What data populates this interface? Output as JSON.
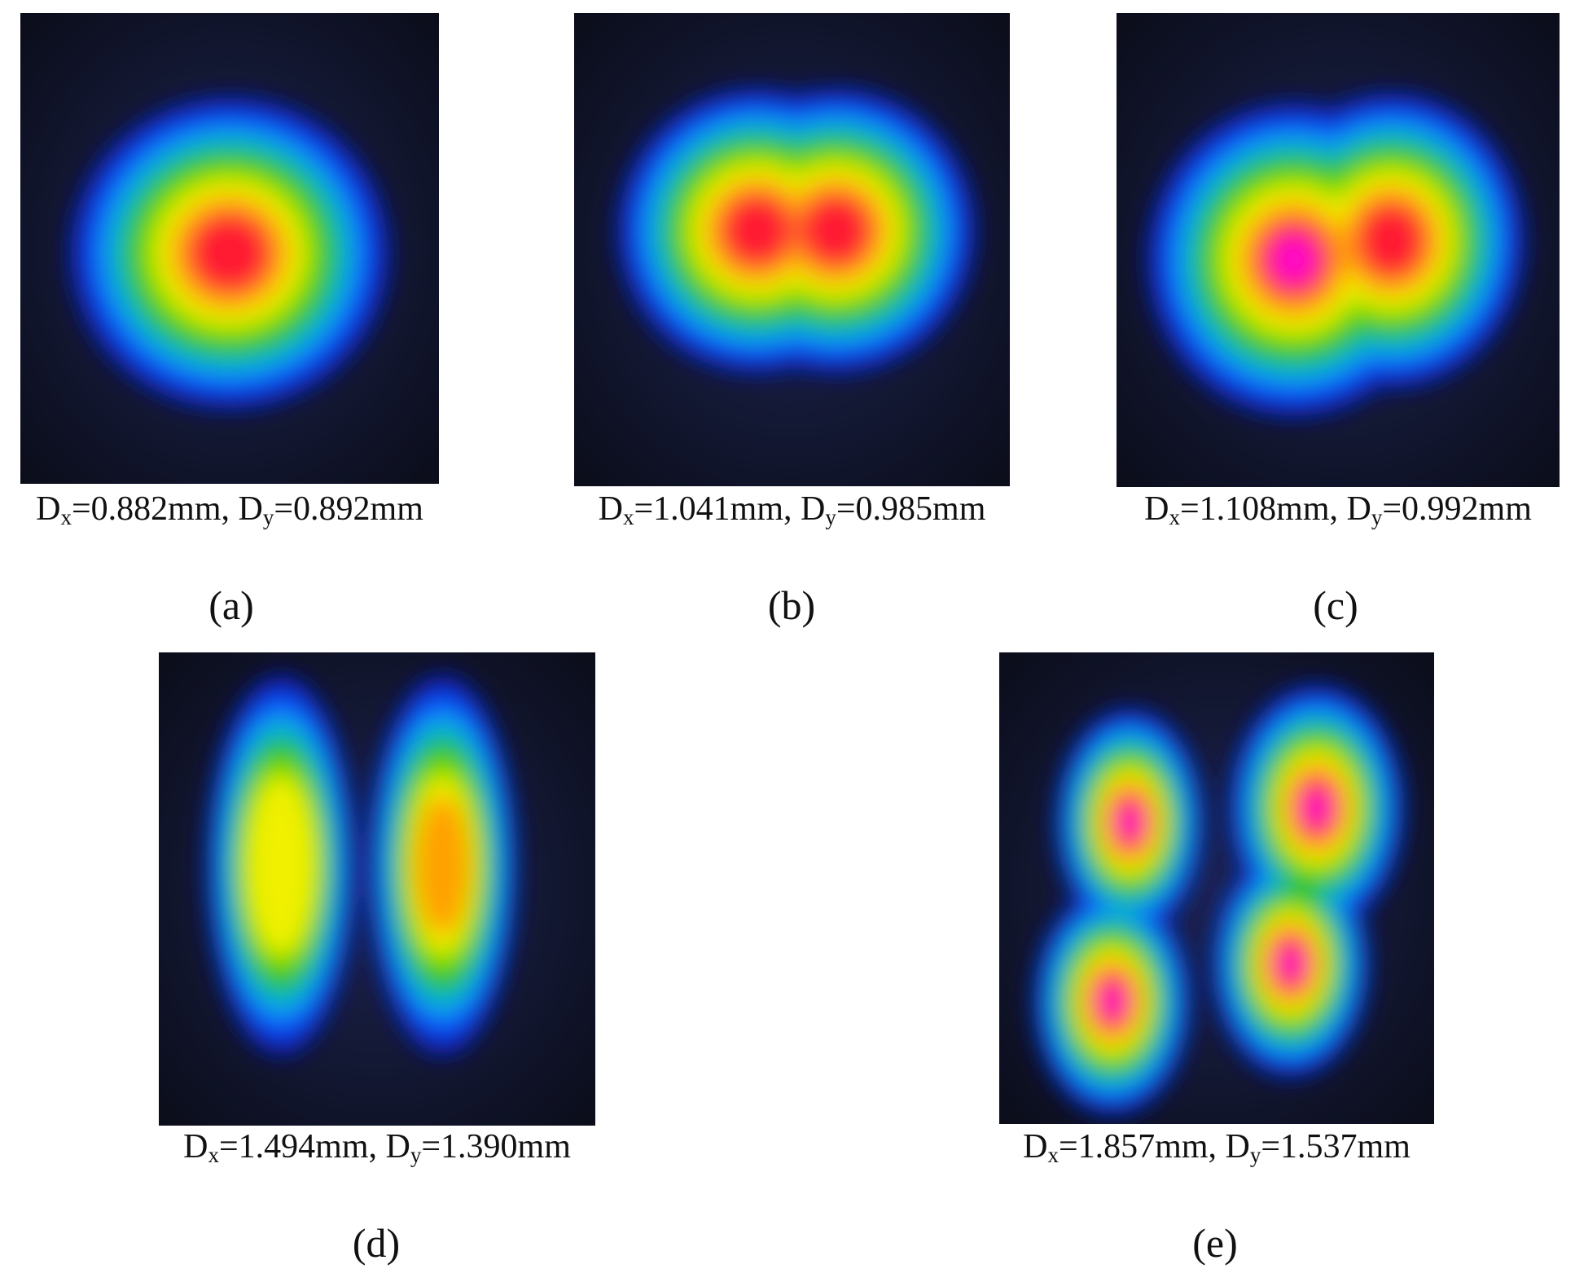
{
  "panels": [
    {
      "label": "(a)",
      "caption": [
        {
          "text": "D"
        },
        {
          "sub": "x"
        },
        {
          "text": "=0.882mm, D"
        },
        {
          "sub": "y"
        },
        {
          "text": "=0.892mm"
        }
      ]
    },
    {
      "label": "(b)",
      "caption": [
        {
          "text": "D"
        },
        {
          "sub": "x"
        },
        {
          "text": "=1.041mm, D"
        },
        {
          "sub": "y"
        },
        {
          "text": "=0.985mm"
        }
      ]
    },
    {
      "label": "(c)",
      "caption": [
        {
          "text": "D"
        },
        {
          "sub": "x"
        },
        {
          "text": "=1.108mm, D"
        },
        {
          "sub": "y"
        },
        {
          "text": "=0.992mm"
        }
      ]
    },
    {
      "label": "(d)",
      "caption": [
        {
          "text": "D"
        },
        {
          "sub": "x"
        },
        {
          "text": "=1.494mm, D"
        },
        {
          "sub": "y"
        },
        {
          "text": "=1.390mm"
        }
      ]
    },
    {
      "label": "(e)",
      "caption": [
        {
          "text": "D"
        },
        {
          "sub": "x"
        },
        {
          "text": "=1.857mm, D"
        },
        {
          "sub": "y"
        },
        {
          "text": "=1.537mm"
        }
      ]
    }
  ]
}
